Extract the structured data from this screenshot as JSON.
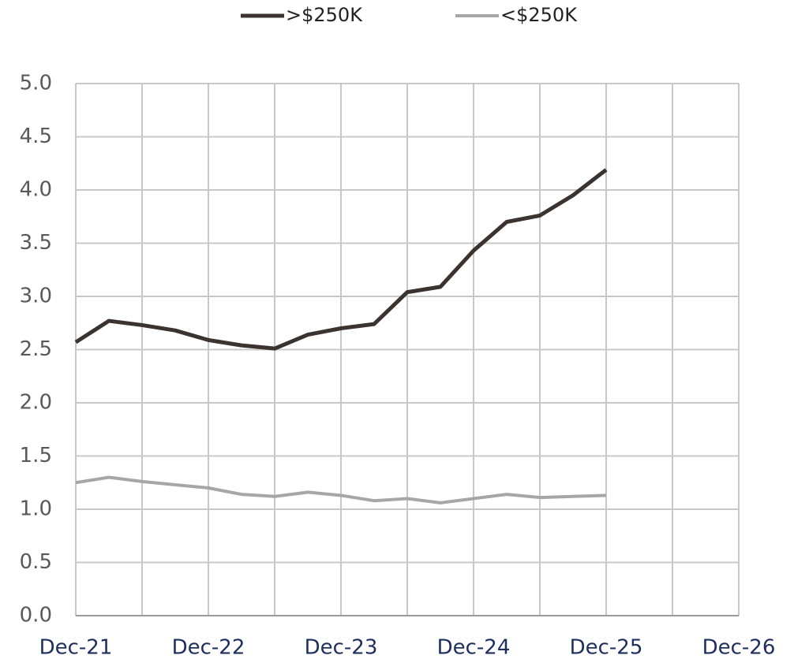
{
  "chart_data": {
    "type": "line",
    "categories": [
      "Dec-21",
      null,
      null,
      null,
      "Dec-22",
      null,
      null,
      null,
      "Dec-23",
      null,
      null,
      null,
      "Dec-24",
      null,
      null,
      null,
      "Dec-25",
      null,
      null,
      null,
      "Dec-26"
    ],
    "series": [
      {
        "name": ">$250K",
        "color": "#3a3330",
        "values": [
          2.57,
          2.77,
          2.73,
          2.68,
          2.59,
          2.54,
          2.51,
          2.64,
          2.7,
          2.74,
          3.04,
          3.09,
          3.43,
          3.7,
          3.76,
          3.95,
          4.19,
          null,
          null,
          null,
          null
        ]
      },
      {
        "name": "<$250K",
        "color": "#a6a6a6",
        "values": [
          1.25,
          1.3,
          1.26,
          1.23,
          1.2,
          1.14,
          1.12,
          1.16,
          1.13,
          1.08,
          1.1,
          1.06,
          1.1,
          1.14,
          1.11,
          1.12,
          1.13,
          null,
          null,
          null,
          null
        ]
      }
    ],
    "ylim": [
      0,
      5
    ],
    "yticks": [
      {
        "value": 0,
        "label": "0.0"
      },
      0.5,
      {
        "value": 1,
        "label": "1.0"
      },
      1.5,
      {
        "value": 2,
        "label": "2.0"
      },
      2.5,
      {
        "value": 3,
        "label": "3.0"
      },
      3.5,
      {
        "value": 4,
        "label": "4.0"
      },
      4.5,
      {
        "value": 5,
        "label": "5.0"
      }
    ],
    "grid": true,
    "legend": "top"
  }
}
